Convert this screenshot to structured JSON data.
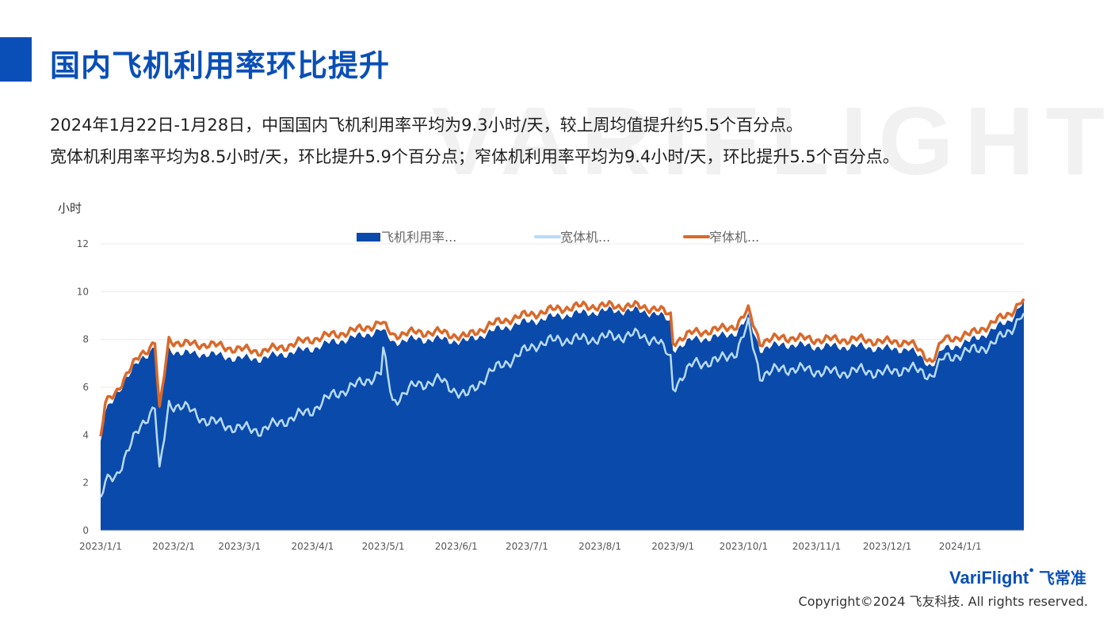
{
  "header": {
    "title": "国内飞机利用率环比提升",
    "description_line1": "2024年1月22日-1月28日，中国国内飞机利用率平均为9.3小时/天，较上周均值提升约5.5个百分点。",
    "description_line2": "宽体机利用率平均为8.5小时/天，环比提升5.9个百分点；窄体机利用率平均为9.4小时/天，环比提升5.5个百分点。"
  },
  "watermark": "VARIFLIGHT",
  "footer": {
    "logo": "VariFlight",
    "logo_cn": "飞常准",
    "copyright": "Copyright©2024 飞友科技. All rights reserved."
  },
  "colors": {
    "brand": "#0a4fb7",
    "area_fill": "#0a4aab",
    "widebody_line": "#b8dbf7",
    "narrowbody_line": "#d9692a"
  },
  "chart_data": {
    "type": "area",
    "ylabel": "小时",
    "ylim": [
      0,
      12
    ],
    "yticks": [
      0,
      2,
      4,
      6,
      8,
      10,
      12
    ],
    "xlim": [
      "2023-01-01",
      "2024-01-28"
    ],
    "xticks": [
      "2023/1/1",
      "2023/2/1",
      "2023/3/1",
      "2023/4/1",
      "2023/5/1",
      "2023/6/1",
      "2023/7/1",
      "2023/8/1",
      "2023/9/1",
      "2023/10/1",
      "2023/11/1",
      "2023/12/1",
      "2024/1/1"
    ],
    "grid": true,
    "legend_position": "top-center",
    "series": [
      {
        "name": "飞机利用率...",
        "style": "area",
        "points": [
          [
            "2023-01-01",
            3.6
          ],
          [
            "2023-01-03",
            4.9
          ],
          [
            "2023-01-08",
            5.8
          ],
          [
            "2023-01-14",
            6.6
          ],
          [
            "2023-01-18",
            7.2
          ],
          [
            "2023-01-21",
            7.4
          ],
          [
            "2023-01-24",
            7.7
          ],
          [
            "2023-01-26",
            4.9
          ],
          [
            "2023-01-30",
            7.6
          ],
          [
            "2023-02-05",
            7.4
          ],
          [
            "2023-02-15",
            7.4
          ],
          [
            "2023-02-28",
            7.2
          ],
          [
            "2023-03-10",
            7.2
          ],
          [
            "2023-03-20",
            7.4
          ],
          [
            "2023-03-31",
            7.6
          ],
          [
            "2023-04-10",
            7.9
          ],
          [
            "2023-04-20",
            8.1
          ],
          [
            "2023-04-30",
            8.4
          ],
          [
            "2023-05-05",
            7.9
          ],
          [
            "2023-05-15",
            8.0
          ],
          [
            "2023-05-25",
            8.0
          ],
          [
            "2023-06-05",
            7.9
          ],
          [
            "2023-06-15",
            8.3
          ],
          [
            "2023-06-25",
            8.6
          ],
          [
            "2023-07-05",
            8.8
          ],
          [
            "2023-07-15",
            9.0
          ],
          [
            "2023-07-25",
            9.1
          ],
          [
            "2023-08-05",
            9.2
          ],
          [
            "2023-08-15",
            9.2
          ],
          [
            "2023-08-25",
            9.1
          ],
          [
            "2023-08-31",
            8.7
          ],
          [
            "2023-09-01",
            7.6
          ],
          [
            "2023-09-10",
            8.0
          ],
          [
            "2023-09-20",
            8.1
          ],
          [
            "2023-09-28",
            8.3
          ],
          [
            "2023-10-03",
            8.9
          ],
          [
            "2023-10-08",
            7.6
          ],
          [
            "2023-10-18",
            7.8
          ],
          [
            "2023-10-31",
            7.7
          ],
          [
            "2023-11-10",
            7.7
          ],
          [
            "2023-11-20",
            7.7
          ],
          [
            "2023-11-30",
            7.6
          ],
          [
            "2023-12-10",
            7.6
          ],
          [
            "2023-12-20",
            6.9
          ],
          [
            "2023-12-25",
            7.6
          ],
          [
            "2024-01-05",
            7.9
          ],
          [
            "2024-01-15",
            8.4
          ],
          [
            "2024-01-22",
            8.8
          ],
          [
            "2024-01-28",
            9.6
          ]
        ]
      },
      {
        "name": "宽体机...",
        "style": "line",
        "points": [
          [
            "2023-01-01",
            1.2
          ],
          [
            "2023-01-03",
            2.0
          ],
          [
            "2023-01-08",
            2.4
          ],
          [
            "2023-01-14",
            3.6
          ],
          [
            "2023-01-18",
            4.4
          ],
          [
            "2023-01-21",
            4.8
          ],
          [
            "2023-01-24",
            5.2
          ],
          [
            "2023-01-26",
            2.4
          ],
          [
            "2023-01-30",
            5.3
          ],
          [
            "2023-02-05",
            5.2
          ],
          [
            "2023-02-15",
            4.6
          ],
          [
            "2023-02-28",
            4.3
          ],
          [
            "2023-03-10",
            4.2
          ],
          [
            "2023-03-20",
            4.6
          ],
          [
            "2023-03-31",
            5.0
          ],
          [
            "2023-04-10",
            5.7
          ],
          [
            "2023-04-20",
            6.1
          ],
          [
            "2023-04-30",
            6.6
          ],
          [
            "2023-05-01",
            7.5
          ],
          [
            "2023-05-05",
            5.4
          ],
          [
            "2023-05-15",
            6.1
          ],
          [
            "2023-05-25",
            6.3
          ],
          [
            "2023-06-05",
            5.6
          ],
          [
            "2023-06-15",
            6.6
          ],
          [
            "2023-06-25",
            7.2
          ],
          [
            "2023-07-05",
            7.8
          ],
          [
            "2023-07-15",
            8.0
          ],
          [
            "2023-07-25",
            8.0
          ],
          [
            "2023-08-05",
            8.1
          ],
          [
            "2023-08-15",
            8.2
          ],
          [
            "2023-08-25",
            8.0
          ],
          [
            "2023-08-31",
            7.2
          ],
          [
            "2023-09-01",
            6.0
          ],
          [
            "2023-09-10",
            7.0
          ],
          [
            "2023-09-20",
            7.1
          ],
          [
            "2023-09-28",
            7.5
          ],
          [
            "2023-10-03",
            8.6
          ],
          [
            "2023-10-08",
            6.5
          ],
          [
            "2023-10-18",
            6.8
          ],
          [
            "2023-10-31",
            6.7
          ],
          [
            "2023-11-10",
            6.6
          ],
          [
            "2023-11-20",
            6.7
          ],
          [
            "2023-11-30",
            6.6
          ],
          [
            "2023-12-10",
            6.8
          ],
          [
            "2023-12-20",
            6.5
          ],
          [
            "2023-12-25",
            7.2
          ],
          [
            "2024-01-05",
            7.5
          ],
          [
            "2024-01-15",
            7.8
          ],
          [
            "2024-01-22",
            8.4
          ],
          [
            "2024-01-28",
            9.1
          ]
        ]
      },
      {
        "name": "窄体机...",
        "style": "line",
        "points": [
          [
            "2023-01-01",
            3.8
          ],
          [
            "2023-01-03",
            5.3
          ],
          [
            "2023-01-08",
            5.9
          ],
          [
            "2023-01-14",
            6.8
          ],
          [
            "2023-01-18",
            7.4
          ],
          [
            "2023-01-21",
            7.6
          ],
          [
            "2023-01-24",
            7.9
          ],
          [
            "2023-01-26",
            5.0
          ],
          [
            "2023-01-30",
            8.0
          ],
          [
            "2023-02-05",
            7.8
          ],
          [
            "2023-02-15",
            7.8
          ],
          [
            "2023-02-28",
            7.6
          ],
          [
            "2023-03-10",
            7.5
          ],
          [
            "2023-03-20",
            7.7
          ],
          [
            "2023-03-31",
            8.0
          ],
          [
            "2023-04-10",
            8.2
          ],
          [
            "2023-04-20",
            8.4
          ],
          [
            "2023-04-30",
            8.7
          ],
          [
            "2023-05-05",
            8.2
          ],
          [
            "2023-05-15",
            8.3
          ],
          [
            "2023-05-25",
            8.3
          ],
          [
            "2023-06-05",
            8.1
          ],
          [
            "2023-06-15",
            8.6
          ],
          [
            "2023-06-25",
            8.9
          ],
          [
            "2023-07-05",
            9.1
          ],
          [
            "2023-07-15",
            9.3
          ],
          [
            "2023-07-25",
            9.4
          ],
          [
            "2023-08-05",
            9.4
          ],
          [
            "2023-08-15",
            9.4
          ],
          [
            "2023-08-25",
            9.3
          ],
          [
            "2023-08-31",
            9.0
          ],
          [
            "2023-09-01",
            7.9
          ],
          [
            "2023-09-10",
            8.3
          ],
          [
            "2023-09-20",
            8.4
          ],
          [
            "2023-09-28",
            8.6
          ],
          [
            "2023-10-03",
            9.2
          ],
          [
            "2023-10-08",
            7.9
          ],
          [
            "2023-10-18",
            8.1
          ],
          [
            "2023-10-31",
            8.0
          ],
          [
            "2023-11-10",
            8.0
          ],
          [
            "2023-11-20",
            8.0
          ],
          [
            "2023-11-30",
            7.9
          ],
          [
            "2023-12-10",
            7.9
          ],
          [
            "2023-12-20",
            7.1
          ],
          [
            "2023-12-25",
            8.0
          ],
          [
            "2024-01-05",
            8.2
          ],
          [
            "2024-01-15",
            8.7
          ],
          [
            "2024-01-22",
            9.1
          ],
          [
            "2024-01-28",
            9.7
          ]
        ]
      }
    ]
  }
}
